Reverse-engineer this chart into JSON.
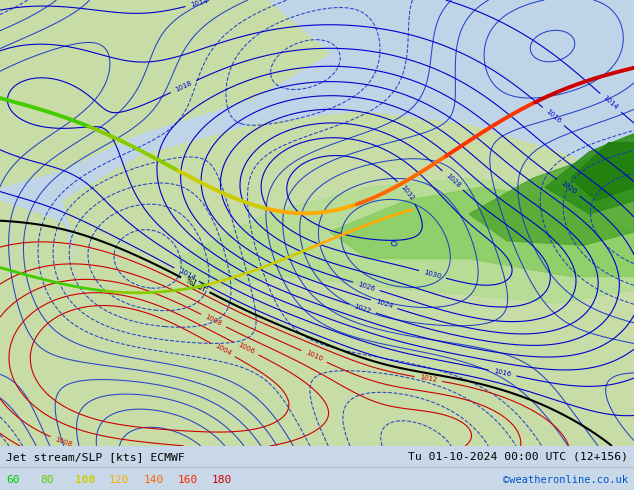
{
  "title_left": "Jet stream/SLP [kts] ECMWF",
  "title_right": "Tu 01-10-2024 00:00 UTC (12+156)",
  "copyright": "©weatheronline.co.uk",
  "legend_values": [
    60,
    80,
    100,
    120,
    140,
    160,
    180
  ],
  "legend_colors": [
    "#00cc00",
    "#66cc00",
    "#cccc00",
    "#ffaa00",
    "#ff6600",
    "#ff2200",
    "#cc0000"
  ],
  "bg_color": "#c8d8e8",
  "land_color": "#c8dca8",
  "slp_color_low": "#cc0000",
  "slp_color_mid": "#000000",
  "slp_color_high": "#0000cc",
  "jet_colors": [
    "#44cc00",
    "#88cc00",
    "#cccc00",
    "#ffaa00",
    "#ff6600",
    "#ff3300",
    "#cc0000"
  ],
  "copyright_color": "#0055cc"
}
